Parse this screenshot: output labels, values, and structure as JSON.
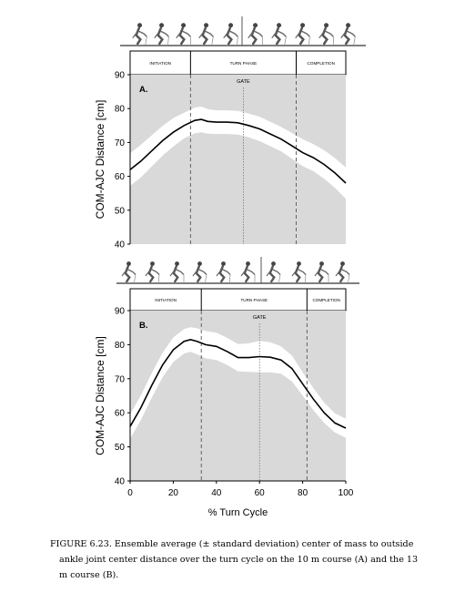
{
  "caption": {
    "line1": "FIGURE 6.23.  Ensemble average (± standard deviation) center of mass to outside",
    "line2": "ankle joint center distance over the turn cycle on the 10 m course (A) and the 13",
    "line3": "m course (B)."
  },
  "chart_data": [
    {
      "type": "line",
      "panel_label": "A.",
      "ylabel": "COM-AJC Distance [cm]",
      "xlabel": "",
      "ylim": [
        40,
        90
      ],
      "yticks": [
        40,
        50,
        60,
        70,
        80,
        90
      ],
      "xlim": [
        0,
        100
      ],
      "phases": [
        "INITIATION",
        "TURN PHASE",
        "COMPLETION"
      ],
      "phase_boundaries": [
        28,
        77
      ],
      "gate_label": "GATE",
      "gate_x": 52.5,
      "x": [
        0,
        5,
        10,
        15,
        20,
        25,
        30,
        33,
        36,
        40,
        45,
        50,
        55,
        60,
        65,
        70,
        75,
        80,
        85,
        90,
        95,
        100
      ],
      "mean": [
        62,
        64.5,
        67.5,
        70.5,
        73,
        75,
        76.5,
        76.8,
        76.2,
        76,
        76,
        75.8,
        75,
        74,
        72.5,
        71,
        69,
        67,
        65.5,
        63.5,
        61,
        58
      ],
      "sd": [
        4.8,
        4.8,
        4.6,
        4.4,
        4.2,
        3.8,
        3.8,
        3.8,
        3.6,
        3.5,
        3.5,
        3.5,
        3.5,
        3.6,
        3.6,
        3.6,
        3.8,
        4.0,
        4.0,
        4.2,
        4.4,
        4.6
      ],
      "background_color": "#d9d9d9",
      "band_color": "#ffffff",
      "line_color": "#000000"
    },
    {
      "type": "line",
      "panel_label": "B.",
      "ylabel": "COM-AJC Distance [cm]",
      "xlabel": "% Turn Cycle",
      "ylim": [
        40,
        90
      ],
      "yticks": [
        40,
        50,
        60,
        70,
        80,
        90
      ],
      "xlim": [
        0,
        100
      ],
      "xticks": [
        0,
        20,
        40,
        60,
        80,
        100
      ],
      "phases": [
        "INITIATION",
        "TURN PHASE",
        "COMPLETION"
      ],
      "phase_boundaries": [
        33,
        82
      ],
      "gate_label": "GATE",
      "gate_x": 60,
      "x": [
        0,
        5,
        10,
        15,
        20,
        25,
        28,
        31,
        35,
        40,
        45,
        50,
        55,
        60,
        65,
        70,
        75,
        80,
        85,
        90,
        95,
        100
      ],
      "mean": [
        56,
        61.5,
        68,
        74,
        78.5,
        81,
        81.5,
        81,
        80,
        79.5,
        78,
        76.2,
        76.2,
        76.5,
        76.3,
        75.5,
        73,
        68.5,
        64,
        60,
        57,
        55.5
      ],
      "sd": [
        3.6,
        3.6,
        3.6,
        3.6,
        3.6,
        3.6,
        3.6,
        3.8,
        4.0,
        4.0,
        4.0,
        4.0,
        4.2,
        4.6,
        4.4,
        4.0,
        3.8,
        3.4,
        3.2,
        3.0,
        2.8,
        2.8
      ],
      "background_color": "#d9d9d9",
      "band_color": "#ffffff",
      "line_color": "#000000"
    }
  ]
}
